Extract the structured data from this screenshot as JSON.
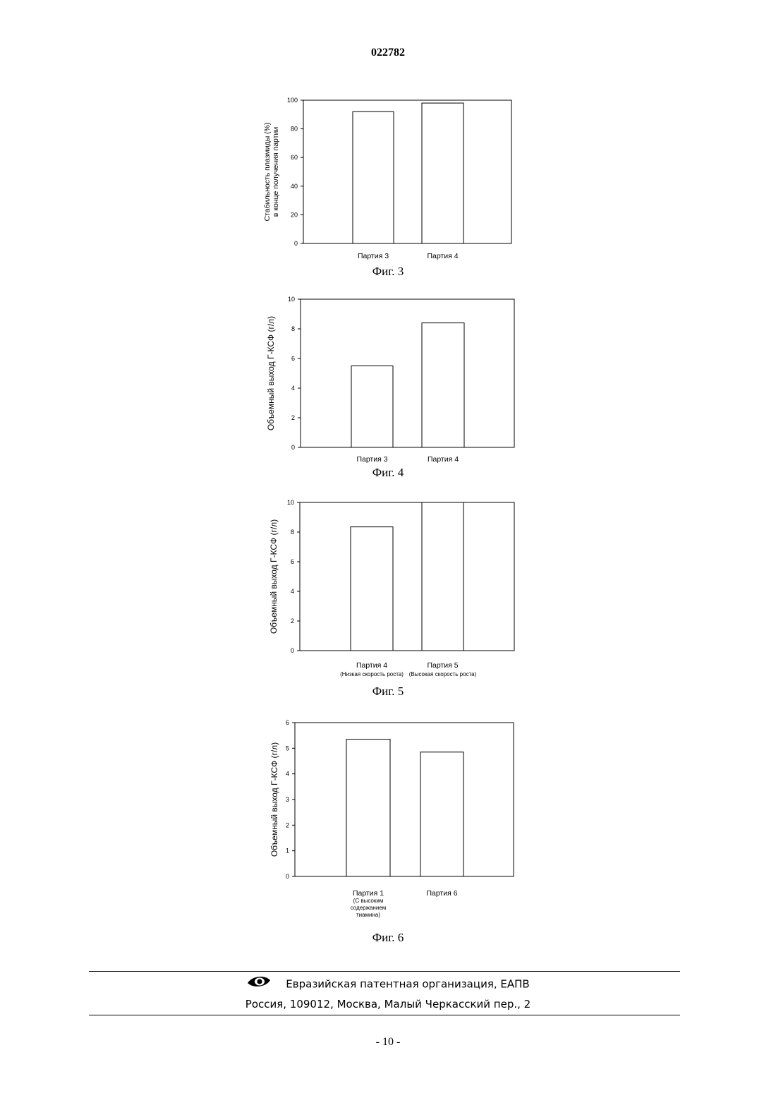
{
  "header": {
    "doc_number": "022782"
  },
  "chart_data": [
    {
      "type": "bar",
      "caption": "Фиг. 3",
      "ylabel": [
        "Стабильность плазмиды (%)",
        "в конце получения партии"
      ],
      "categories": [
        [
          "Партия 3"
        ],
        [
          "Партия 4"
        ]
      ],
      "values": [
        92,
        98
      ],
      "ylim": [
        0,
        100
      ],
      "yticks": [
        0,
        20,
        40,
        60,
        80,
        100
      ],
      "grid": false
    },
    {
      "type": "bar",
      "caption": "Фиг. 4",
      "ylabel": [
        "Объемный выход Г-КСФ (г/л)"
      ],
      "categories": [
        [
          "Партия 3"
        ],
        [
          "Партия 4"
        ]
      ],
      "values": [
        5.5,
        8.4
      ],
      "ylim": [
        0,
        10
      ],
      "yticks": [
        0,
        2,
        4,
        6,
        8,
        10
      ],
      "grid": false
    },
    {
      "type": "bar",
      "caption": "Фиг. 5",
      "ylabel": [
        "Объемный выход Г-КСФ (г/л)"
      ],
      "categories": [
        [
          "Партия 4",
          "(Низкая скорость роста)"
        ],
        [
          "Партия 5",
          "(Высокая скорость роста)"
        ]
      ],
      "values": [
        8.35,
        10
      ],
      "ylim": [
        0,
        10
      ],
      "yticks": [
        0,
        2,
        4,
        6,
        8,
        10
      ],
      "grid": false
    },
    {
      "type": "bar",
      "caption": "Фиг. 6",
      "ylabel": [
        "Объемный выход Г-КСФ (г/л)"
      ],
      "categories": [
        [
          "Партия 1",
          "(С высоким",
          "содержанием",
          "тиамина)"
        ],
        [
          "Партия 6"
        ]
      ],
      "values": [
        5.35,
        4.85
      ],
      "ylim": [
        0,
        6
      ],
      "yticks": [
        0,
        1,
        2,
        3,
        4,
        5,
        6
      ],
      "grid": false
    }
  ],
  "footer": {
    "organization": "Евразийская патентная организация, ЕАПВ",
    "address": "Россия, 109012, Москва, Малый Черкасский пер., 2",
    "logo_icon": "eapo-eye-logo-icon"
  },
  "page_number": "- 10 -"
}
